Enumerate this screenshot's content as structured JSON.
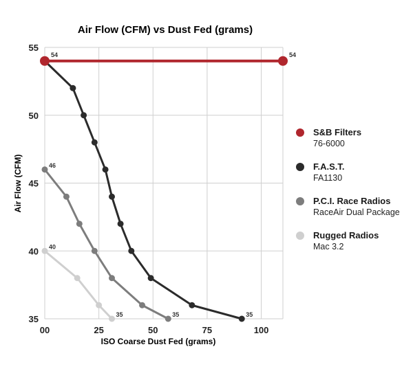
{
  "chart_data": {
    "type": "line",
    "title": "Air Flow (CFM) vs Dust Fed (grams)",
    "xlabel": "ISO Coarse Dust Fed (grams)",
    "ylabel": "Air Flow (CFM)",
    "xlim": [
      0,
      110
    ],
    "ylim": [
      35,
      55
    ],
    "xticks": [
      0,
      25,
      50,
      75,
      100
    ],
    "yticks": [
      35,
      40,
      45,
      50,
      55
    ],
    "grid": true,
    "legend_position": "right",
    "series": [
      {
        "name": "S&B Filters",
        "subtitle": "76-6000",
        "color": "#b0262d",
        "points": [
          [
            0,
            54
          ],
          [
            110,
            54
          ]
        ],
        "point_labels": [
          "54",
          "54"
        ]
      },
      {
        "name": "F.A.S.T.",
        "subtitle": "FA1130",
        "color": "#2b2b2b",
        "points": [
          [
            0,
            54
          ],
          [
            13,
            52
          ],
          [
            18,
            50
          ],
          [
            23,
            48
          ],
          [
            28,
            46
          ],
          [
            31,
            44
          ],
          [
            35,
            42
          ],
          [
            40,
            40
          ],
          [
            49,
            38
          ],
          [
            68,
            36
          ],
          [
            91,
            35
          ]
        ],
        "point_labels": [
          "",
          "",
          "",
          "",
          "",
          "",
          "",
          "",
          "",
          "",
          "35"
        ]
      },
      {
        "name": "P.C.I. Race Radios",
        "subtitle": "RaceAir Dual Package",
        "color": "#7d7d7d",
        "points": [
          [
            0,
            46
          ],
          [
            10,
            44
          ],
          [
            16,
            42
          ],
          [
            23,
            40
          ],
          [
            31,
            38
          ],
          [
            45,
            36
          ],
          [
            57,
            35
          ]
        ],
        "point_labels": [
          "46",
          "",
          "",
          "",
          "",
          "",
          "35"
        ]
      },
      {
        "name": "Rugged Radios",
        "subtitle": "Mac 3.2",
        "color": "#cfcfcf",
        "points": [
          [
            0,
            40
          ],
          [
            15,
            38
          ],
          [
            25,
            36
          ],
          [
            31,
            35
          ]
        ],
        "point_labels": [
          "40",
          "",
          "",
          "35"
        ]
      }
    ]
  }
}
